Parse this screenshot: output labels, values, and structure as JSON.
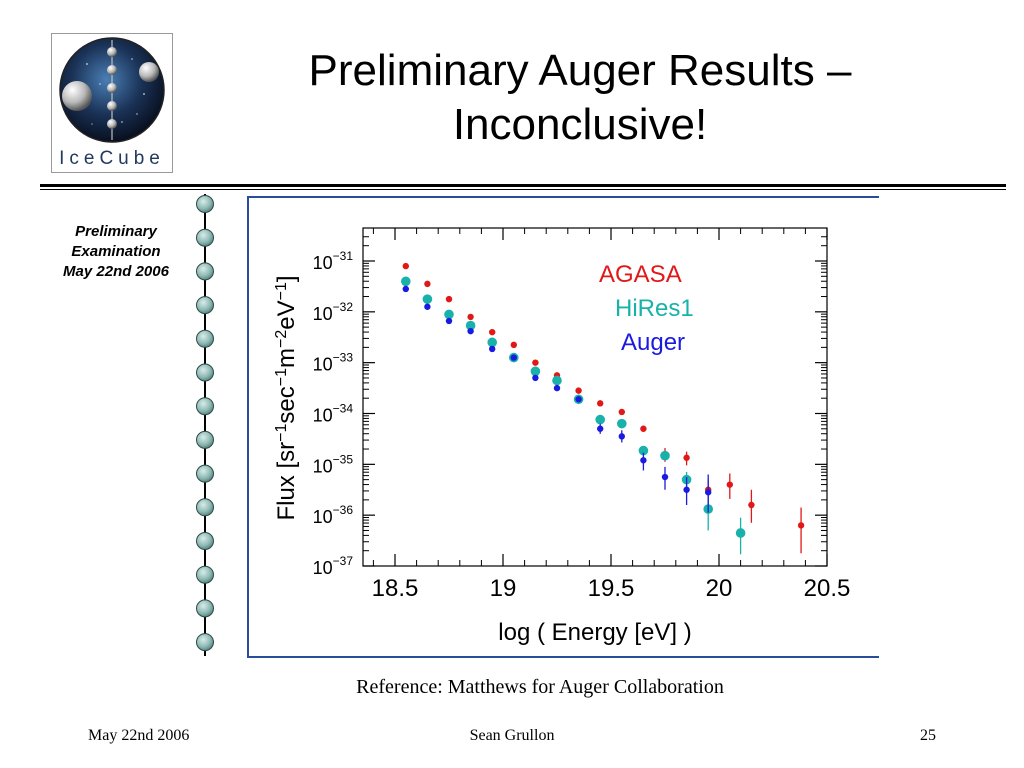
{
  "slide": {
    "title": "Preliminary Auger Results – Inconclusive!",
    "logo_text": "IceCube",
    "sidebar_lines": [
      "Preliminary",
      "Examination",
      "May 22nd 2006"
    ],
    "reference": "Reference: Matthews for Auger Collaboration",
    "footer": {
      "date": "May 22nd 2006",
      "author": "Sean Grullon",
      "page": "25"
    },
    "colors": {
      "rule": "#000000",
      "string_bead": "#8fb9b4",
      "chart_border": "#2a4d9b"
    }
  },
  "chart_data": {
    "type": "scatter",
    "title": "",
    "xlabel": "log ( Energy  [eV] )",
    "ylabel_parts": [
      "Flux  [sr",
      "−1",
      "sec",
      "−1",
      "m",
      "−2",
      "eV",
      "−1",
      "]"
    ],
    "xlim": [
      18.4,
      20.5
    ],
    "ylim_log10": [
      -37,
      -30.5
    ],
    "y_scale": "log",
    "x_ticks": [
      18.5,
      19,
      19.5,
      20,
      20.5
    ],
    "x_tick_labels": [
      "18.5",
      "19",
      "19.5",
      "20",
      "20.5"
    ],
    "y_ticks_log10": [
      -31,
      -32,
      -33,
      -34,
      -35,
      -36,
      -37
    ],
    "y_tick_labels": [
      {
        "base": "10",
        "exp": "−31"
      },
      {
        "base": "10",
        "exp": "−32"
      },
      {
        "base": "10",
        "exp": "−33"
      },
      {
        "base": "10",
        "exp": "−34"
      },
      {
        "base": "10",
        "exp": "−35"
      },
      {
        "base": "10",
        "exp": "−36"
      },
      {
        "base": "10",
        "exp": "−37"
      }
    ],
    "legend_position": "top-right",
    "series": [
      {
        "name": "AGASA",
        "color": "#e01818",
        "marker_size": "small",
        "points": [
          {
            "x": 18.55,
            "log10_y": -31.1
          },
          {
            "x": 18.65,
            "log10_y": -31.45
          },
          {
            "x": 18.75,
            "log10_y": -31.75
          },
          {
            "x": 18.85,
            "log10_y": -32.1
          },
          {
            "x": 18.95,
            "log10_y": -32.4
          },
          {
            "x": 19.05,
            "log10_y": -32.65
          },
          {
            "x": 19.15,
            "log10_y": -33.0
          },
          {
            "x": 19.25,
            "log10_y": -33.25
          },
          {
            "x": 19.35,
            "log10_y": -33.55
          },
          {
            "x": 19.45,
            "log10_y": -33.8
          },
          {
            "x": 19.55,
            "log10_y": -33.97
          },
          {
            "x": 19.65,
            "log10_y": -34.3
          },
          {
            "x": 19.75,
            "log10_y": -34.8,
            "err_up": 0.12,
            "err_down": 0.15
          },
          {
            "x": 19.85,
            "log10_y": -34.87,
            "err_up": 0.12,
            "err_down": 0.15
          },
          {
            "x": 19.95,
            "log10_y": -35.5,
            "err_up": 0.2,
            "err_down": 0.25
          },
          {
            "x": 20.05,
            "log10_y": -35.4,
            "err_up": 0.22,
            "err_down": 0.28
          },
          {
            "x": 20.15,
            "log10_y": -35.8,
            "err_up": 0.3,
            "err_down": 0.35
          },
          {
            "x": 20.38,
            "log10_y": -36.2,
            "err_up": 0.35,
            "err_down": 0.55
          }
        ]
      },
      {
        "name": "HiRes1",
        "color": "#19b2aa",
        "marker_size": "large",
        "points": [
          {
            "x": 18.55,
            "log10_y": -31.4
          },
          {
            "x": 18.65,
            "log10_y": -31.75
          },
          {
            "x": 18.75,
            "log10_y": -32.05
          },
          {
            "x": 18.85,
            "log10_y": -32.27
          },
          {
            "x": 18.95,
            "log10_y": -32.6
          },
          {
            "x": 19.05,
            "log10_y": -32.9
          },
          {
            "x": 19.15,
            "log10_y": -33.17
          },
          {
            "x": 19.25,
            "log10_y": -33.35
          },
          {
            "x": 19.35,
            "log10_y": -33.72
          },
          {
            "x": 19.45,
            "log10_y": -34.12
          },
          {
            "x": 19.55,
            "log10_y": -34.2
          },
          {
            "x": 19.65,
            "log10_y": -34.73
          },
          {
            "x": 19.75,
            "log10_y": -34.83
          },
          {
            "x": 19.85,
            "log10_y": -35.3,
            "err_up": 0.15,
            "err_down": 0.15
          },
          {
            "x": 19.95,
            "log10_y": -35.88,
            "err_up": 0.4,
            "err_down": 0.42
          },
          {
            "x": 20.1,
            "log10_y": -36.35,
            "err_up": 0.3,
            "err_down": 0.42
          }
        ]
      },
      {
        "name": "Auger",
        "color": "#1a1ae0",
        "marker_size": "small",
        "points": [
          {
            "x": 18.55,
            "log10_y": -31.55
          },
          {
            "x": 18.65,
            "log10_y": -31.9
          },
          {
            "x": 18.75,
            "log10_y": -32.18
          },
          {
            "x": 18.85,
            "log10_y": -32.38
          },
          {
            "x": 18.95,
            "log10_y": -32.73
          },
          {
            "x": 19.05,
            "log10_y": -32.9
          },
          {
            "x": 19.15,
            "log10_y": -33.3
          },
          {
            "x": 19.25,
            "log10_y": -33.5
          },
          {
            "x": 19.35,
            "log10_y": -33.72
          },
          {
            "x": 19.45,
            "log10_y": -34.3,
            "err_up": 0.1,
            "err_down": 0.1
          },
          {
            "x": 19.55,
            "log10_y": -34.45,
            "err_up": 0.12,
            "err_down": 0.12
          },
          {
            "x": 19.65,
            "log10_y": -34.92,
            "err_up": 0.15,
            "err_down": 0.2
          },
          {
            "x": 19.75,
            "log10_y": -35.25,
            "err_up": 0.2,
            "err_down": 0.25
          },
          {
            "x": 19.85,
            "log10_y": -35.5,
            "err_up": 0.25,
            "err_down": 0.3
          },
          {
            "x": 19.95,
            "log10_y": -35.55,
            "err_up": 0.35,
            "err_down": 0.4
          }
        ]
      }
    ]
  }
}
